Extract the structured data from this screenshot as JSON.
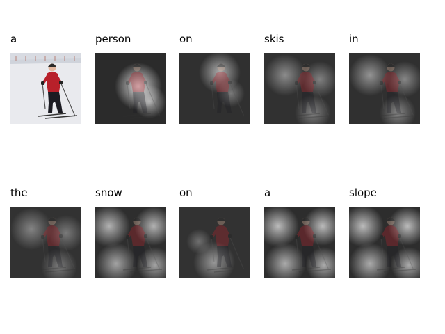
{
  "caption_words": [
    "a",
    "person",
    "on",
    "skis",
    "in",
    "the",
    "snow",
    "on",
    "a",
    "slope"
  ],
  "grid": {
    "rows": 2,
    "columns": 5
  },
  "panels": [
    {
      "word": "a",
      "kind": "original"
    },
    {
      "word": "person",
      "kind": "attention",
      "focus": "center-right",
      "level": 0.85
    },
    {
      "word": "on",
      "kind": "attention",
      "focus": "upper-center",
      "level": 0.6
    },
    {
      "word": "skis",
      "kind": "attention",
      "focus": "diffuse",
      "level": 0.55
    },
    {
      "word": "in",
      "kind": "attention",
      "focus": "diffuse",
      "level": 0.6
    },
    {
      "word": "the",
      "kind": "attention",
      "focus": "diffuse",
      "level": 0.5
    },
    {
      "word": "snow",
      "kind": "attention",
      "focus": "background",
      "level": 0.7
    },
    {
      "word": "on",
      "kind": "attention",
      "focus": "lower-center",
      "level": 0.5
    },
    {
      "word": "a",
      "kind": "attention",
      "focus": "background",
      "level": 0.75
    },
    {
      "word": "slope",
      "kind": "attention",
      "focus": "background",
      "level": 0.75
    }
  ],
  "colors": {
    "background": "#ffffff",
    "snow": "#e9eaee",
    "jacket": "#b8202a",
    "pants": "#1b1b22",
    "text": "#000000"
  }
}
